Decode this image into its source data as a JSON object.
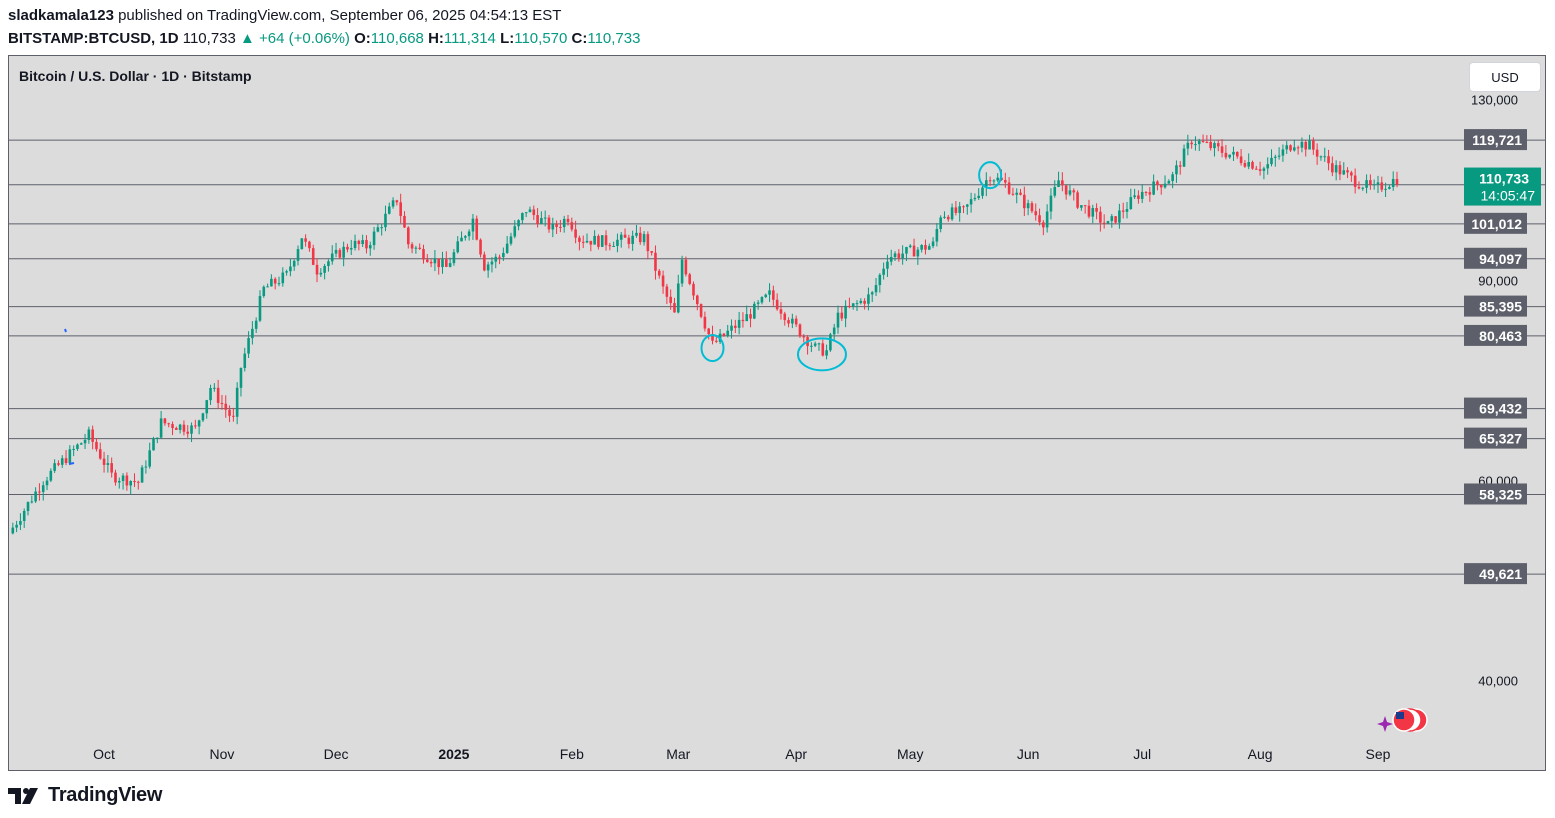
{
  "header": {
    "publisher": "sladkamala123",
    "published_text": "published on TradingView.com, September 06, 2025 04:54:13 EST",
    "symbol": "BITSTAMP:BTCUSD, 1D",
    "last": "110,733",
    "change": "▲ +64 (+0.06%)",
    "o_label": "O:",
    "o": "110,668",
    "h_label": "H:",
    "h": "111,314",
    "l_label": "L:",
    "l": "110,570",
    "c_label": "C:",
    "c": "110,733"
  },
  "chart_title": "Bitcoin / U.S. Dollar · 1D · Bitstamp",
  "currency_button": "USD",
  "footer": {
    "brand": "TradingView"
  },
  "colors": {
    "up": "#089981",
    "down": "#f23645",
    "level_line": "#5d606b",
    "level_label_bg": "#5d606b",
    "annotation": "#00bcd4",
    "panel_bg": "#dcdcdc"
  },
  "chart_data": {
    "type": "candlestick",
    "title": "Bitcoin / U.S. Dollar · 1D · Bitstamp",
    "x_range": [
      "2024-09-06",
      "2025-09-06"
    ],
    "x_ticks": [
      {
        "label": "Oct",
        "date": "2024-10-01",
        "bold": false
      },
      {
        "label": "Nov",
        "date": "2024-11-01",
        "bold": false
      },
      {
        "label": "Dec",
        "date": "2024-12-01",
        "bold": false
      },
      {
        "label": "2025",
        "date": "2025-01-01",
        "bold": true
      },
      {
        "label": "Feb",
        "date": "2025-02-01",
        "bold": false
      },
      {
        "label": "Mar",
        "date": "2025-03-01",
        "bold": false
      },
      {
        "label": "Apr",
        "date": "2025-04-01",
        "bold": false
      },
      {
        "label": "May",
        "date": "2025-05-01",
        "bold": false
      },
      {
        "label": "Jun",
        "date": "2025-06-01",
        "bold": false
      },
      {
        "label": "Jul",
        "date": "2025-07-01",
        "bold": false
      },
      {
        "label": "Aug",
        "date": "2025-08-01",
        "bold": false
      },
      {
        "label": "Sep",
        "date": "2025-09-01",
        "bold": false
      }
    ],
    "y_ticks": [
      {
        "label": "130,000",
        "value": 130000
      },
      {
        "label": "90,000",
        "value": 90000
      },
      {
        "label": "60,000",
        "value": 60000
      },
      {
        "label": "40,000",
        "value": 40000
      }
    ],
    "y_scale": "log",
    "y_range": [
      35800,
      142000
    ],
    "current_price": {
      "label": "110,733",
      "countdown": "14:05:47",
      "value": 110733
    },
    "horizontal_levels": [
      {
        "label": "119,721",
        "value": 119721
      },
      {
        "label": "109,338",
        "value": 109338
      },
      {
        "label": "101,012",
        "value": 101012
      },
      {
        "label": "94,097",
        "value": 94097
      },
      {
        "label": "85,395",
        "value": 85395
      },
      {
        "label": "80,463",
        "value": 80463
      },
      {
        "label": "69,432",
        "value": 69432
      },
      {
        "label": "65,327",
        "value": 65327
      },
      {
        "label": "58,325",
        "value": 58325
      },
      {
        "label": "49,621",
        "value": 49621
      }
    ],
    "price_path": [
      [
        "2024-09-06",
        53900
      ],
      [
        "2024-09-15",
        60000
      ],
      [
        "2024-09-27",
        65800
      ],
      [
        "2024-10-03",
        60600
      ],
      [
        "2024-10-10",
        59800
      ],
      [
        "2024-10-16",
        67500
      ],
      [
        "2024-10-25",
        66600
      ],
      [
        "2024-10-29",
        72500
      ],
      [
        "2024-11-04",
        67800
      ],
      [
        "2024-11-06",
        75500
      ],
      [
        "2024-11-12",
        88500
      ],
      [
        "2024-11-18",
        91000
      ],
      [
        "2024-11-22",
        98500
      ],
      [
        "2024-11-26",
        92000
      ],
      [
        "2024-12-05",
        97000
      ],
      [
        "2024-12-09",
        96500
      ],
      [
        "2024-12-17",
        106200
      ],
      [
        "2024-12-20",
        97000
      ],
      [
        "2024-12-30",
        92400
      ],
      [
        "2025-01-06",
        102000
      ],
      [
        "2025-01-09",
        92800
      ],
      [
        "2025-01-13",
        94500
      ],
      [
        "2025-01-20",
        104000
      ],
      [
        "2025-01-27",
        100000
      ],
      [
        "2025-01-31",
        102400
      ],
      [
        "2025-02-03",
        98000
      ],
      [
        "2025-02-10",
        97400
      ],
      [
        "2025-02-20",
        98200
      ],
      [
        "2025-02-25",
        88500
      ],
      [
        "2025-02-28",
        84000
      ],
      [
        "2025-03-02",
        94000
      ],
      [
        "2025-03-10",
        79000
      ],
      [
        "2025-03-20",
        84200
      ],
      [
        "2025-03-25",
        87500
      ],
      [
        "2025-03-31",
        82500
      ],
      [
        "2025-04-06",
        78500
      ],
      [
        "2025-04-09",
        78000
      ],
      [
        "2025-04-12",
        83800
      ],
      [
        "2025-04-21",
        87500
      ],
      [
        "2025-04-25",
        94500
      ],
      [
        "2025-05-01",
        95500
      ],
      [
        "2025-05-07",
        96800
      ],
      [
        "2025-05-09",
        103000
      ],
      [
        "2025-05-15",
        103500
      ],
      [
        "2025-05-22",
        111500
      ],
      [
        "2025-05-26",
        109500
      ],
      [
        "2025-06-01",
        104500
      ],
      [
        "2025-06-05",
        101500
      ],
      [
        "2025-06-09",
        110300
      ],
      [
        "2025-06-14",
        105500
      ],
      [
        "2025-06-22",
        100700
      ],
      [
        "2025-06-30",
        107200
      ],
      [
        "2025-07-09",
        111200
      ],
      [
        "2025-07-14",
        119800
      ],
      [
        "2025-07-20",
        117800
      ],
      [
        "2025-08-02",
        113000
      ],
      [
        "2025-08-10",
        119300
      ],
      [
        "2025-08-14",
        118300
      ],
      [
        "2025-08-20",
        113500
      ],
      [
        "2025-08-26",
        110200
      ],
      [
        "2025-08-31",
        108300
      ],
      [
        "2025-09-06",
        110733
      ]
    ],
    "annotations": [
      {
        "type": "circle",
        "date": "2025-03-10",
        "value": 78500
      },
      {
        "type": "ellipse",
        "date": "2025-04-07",
        "value": 77500
      },
      {
        "type": "circle",
        "date": "2025-05-22",
        "value": 111500
      }
    ]
  }
}
